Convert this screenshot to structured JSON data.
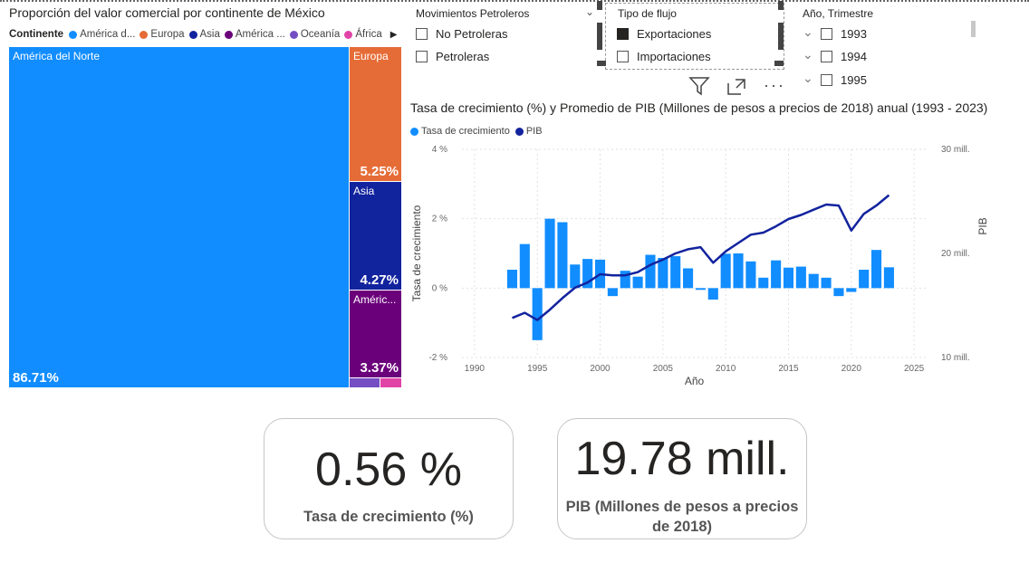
{
  "treemap": {
    "title": "Proporción del valor comercial por continente de México",
    "legend_title": "Continente",
    "legend": [
      {
        "label": "América d...",
        "color": "#118DFF"
      },
      {
        "label": "Europa",
        "color": "#E66C37"
      },
      {
        "label": "Asia",
        "color": "#12239E"
      },
      {
        "label": "América ...",
        "color": "#6B007B"
      },
      {
        "label": "Oceanía",
        "color": "#744EC2"
      },
      {
        "label": "África",
        "color": "#E044A7"
      }
    ],
    "tiles": {
      "america_norte": {
        "label": "América del Norte",
        "pct": "86.71%",
        "color": "#118DFF"
      },
      "europa": {
        "label": "Europa",
        "pct": "5.25%",
        "color": "#E66C37"
      },
      "asia": {
        "label": "Asia",
        "pct": "4.27%",
        "color": "#12239E"
      },
      "america_sur": {
        "label": "Améric...",
        "pct": "3.37%",
        "color": "#6B007B"
      },
      "oceania": {
        "label": "",
        "pct": "",
        "color": "#744EC2"
      },
      "africa": {
        "label": "",
        "pct": "",
        "color": "#E044A7"
      }
    }
  },
  "slicers": {
    "movimientos": {
      "title": "Movimientos Petroleros",
      "options": [
        {
          "label": "No Petroleras",
          "checked": false
        },
        {
          "label": "Petroleras",
          "checked": false
        }
      ]
    },
    "tipo_flujo": {
      "title": "Tipo de flujo",
      "options": [
        {
          "label": "Exportaciones",
          "checked": true
        },
        {
          "label": "Importaciones",
          "checked": false
        }
      ]
    },
    "anio": {
      "title": "Año, Trimestre",
      "options": [
        {
          "label": "1993",
          "checked": false
        },
        {
          "label": "1994",
          "checked": false
        },
        {
          "label": "1995",
          "checked": false
        }
      ]
    }
  },
  "visual_header": {
    "icons": [
      "filter-icon",
      "focus-mode-icon",
      "more-options-icon"
    ]
  },
  "chart_data": {
    "type": "combo",
    "title": "Tasa de crecimiento (%) y Promedio de PIB (Millones de pesos a precios de 2018) anual (1993 - 2023)",
    "xlabel": "Año",
    "ylabel": "Tasa de crecimiento",
    "y2label": "PIB",
    "x_ticks": [
      "1990",
      "1995",
      "2000",
      "2005",
      "2010",
      "2015",
      "2020",
      "2025"
    ],
    "y_ticks": [
      "-2 %",
      "0 %",
      "2 %",
      "4 %"
    ],
    "y2_ticks": [
      "10 mill.",
      "20 mill.",
      "30 mill."
    ],
    "xlim": [
      1989,
      2026
    ],
    "ylim": [
      -2,
      4
    ],
    "y2lim": [
      10,
      30
    ],
    "grid": true,
    "legend_position": "top-left",
    "series": [
      {
        "name": "Tasa de crecimiento",
        "type": "bar",
        "color": "#118DFF",
        "x": [
          1993,
          1994,
          1995,
          1996,
          1997,
          1998,
          1999,
          2000,
          2001,
          2002,
          2003,
          2004,
          2005,
          2006,
          2007,
          2008,
          2009,
          2010,
          2011,
          2012,
          2013,
          2014,
          2015,
          2016,
          2017,
          2018,
          2019,
          2020,
          2021,
          2022,
          2023
        ],
        "values": [
          0.53,
          1.27,
          -1.5,
          2.0,
          1.9,
          0.68,
          0.84,
          0.82,
          -0.23,
          0.5,
          0.33,
          0.96,
          0.87,
          0.92,
          0.57,
          -0.05,
          -0.33,
          0.99,
          1.0,
          0.77,
          0.3,
          0.8,
          0.59,
          0.62,
          0.41,
          0.3,
          -0.23,
          -0.11,
          0.53,
          1.1,
          0.6
        ]
      },
      {
        "name": "PIB",
        "type": "line",
        "color": "#12239E",
        "axis": "secondary",
        "x": [
          1993,
          1994,
          1995,
          1996,
          1997,
          1998,
          1999,
          2000,
          2001,
          2002,
          2003,
          2004,
          2005,
          2006,
          2007,
          2008,
          2009,
          2010,
          2011,
          2012,
          2013,
          2014,
          2015,
          2016,
          2017,
          2018,
          2019,
          2020,
          2021,
          2022,
          2023
        ],
        "values": [
          13.8,
          14.3,
          13.6,
          14.6,
          15.7,
          16.7,
          17.2,
          18.0,
          17.9,
          17.9,
          18.2,
          18.9,
          19.4,
          20.0,
          20.4,
          20.6,
          19.1,
          20.2,
          21.0,
          21.8,
          22.0,
          22.6,
          23.3,
          23.7,
          24.2,
          24.7,
          24.6,
          22.2,
          23.8,
          24.6,
          25.6
        ]
      }
    ]
  },
  "kpi_cards": [
    {
      "value": "0.56 %",
      "label": "Tasa de crecimiento (%)"
    },
    {
      "value": "19.78 mill.",
      "label_line1": "PIB (Millones de pesos a precios",
      "label_line2": "de 2018)"
    }
  ]
}
